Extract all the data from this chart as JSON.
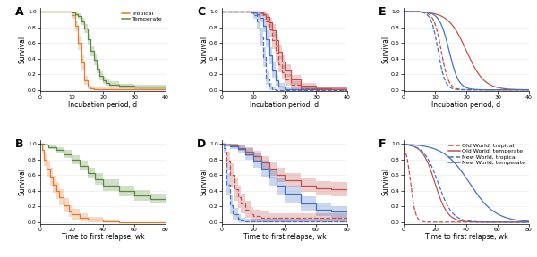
{
  "fig_size": [
    6.0,
    2.88
  ],
  "dpi": 100,
  "bg_color": "#ffffff",
  "tropical_color": "#E07B30",
  "temperate_color": "#5A8A3C",
  "old_world_color": "#C0504D",
  "new_world_color": "#4472C4",
  "panel_labels": [
    "A",
    "B",
    "C",
    "D",
    "E",
    "F"
  ],
  "panel_label_fontsize": 9,
  "axis_label_fontsize": 5.5,
  "tick_fontsize": 4.5,
  "legend_fontsize": 4.5,
  "grid_color": "#e8e8e8",
  "alpha_band": 0.28,
  "lw": 0.9
}
